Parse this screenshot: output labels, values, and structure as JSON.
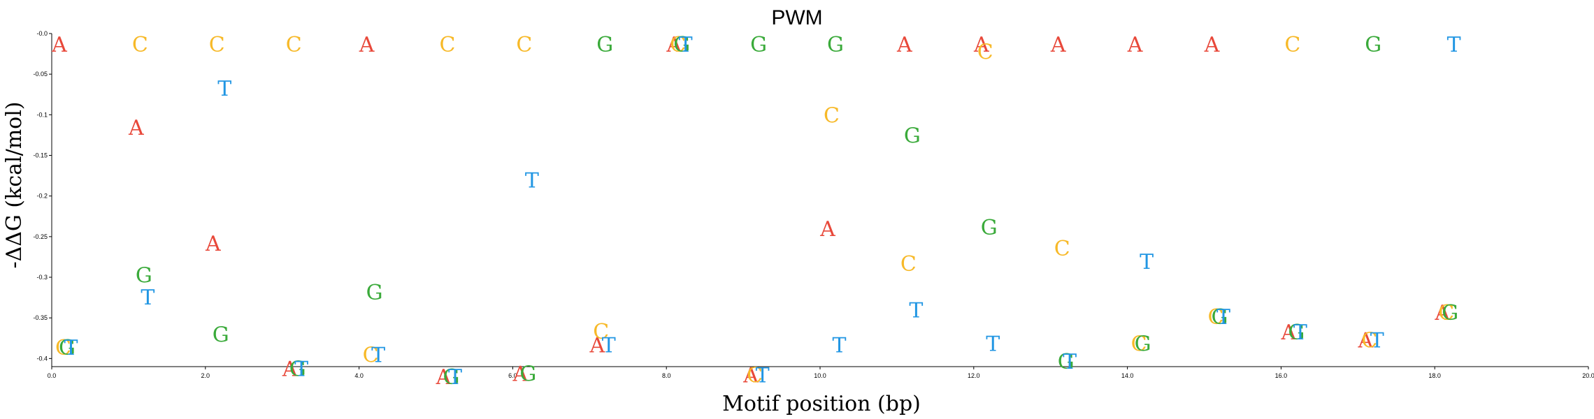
{
  "chart_data": {
    "type": "scatter",
    "title": "PWM",
    "xlabel": "Motif position (bp)",
    "ylabel": "-ΔΔG (kcal/mol)",
    "xlim": [
      0,
      20
    ],
    "ylim": [
      -0.41,
      0.0
    ],
    "x_ticks": [
      "0.0",
      "2.0",
      "4.0",
      "6.0",
      "8.0",
      "10.0",
      "12.0",
      "14.0",
      "16.0",
      "18.0",
      "20.0"
    ],
    "y_ticks": [
      "-0.0",
      "-0.05",
      "-0.1",
      "-0.15",
      "-0.2",
      "-0.25",
      "-0.3",
      "-0.35",
      "-0.4"
    ],
    "x_tick_values": [
      0,
      2,
      4,
      6,
      8,
      10,
      12,
      14,
      16,
      18,
      20
    ],
    "y_tick_values": [
      0,
      -0.05,
      -0.1,
      -0.15,
      -0.2,
      -0.25,
      -0.3,
      -0.35,
      -0.4
    ],
    "colors": {
      "A": "#e8483a",
      "C": "#f7b928",
      "G": "#3aaa3a",
      "T": "#2196e3"
    },
    "offsets": {
      "A": 0.1,
      "C": 0.15,
      "G": 0.2,
      "T": 0.25
    },
    "series": [
      {
        "name": "A",
        "points": [
          {
            "x": 0,
            "y": -0.013
          },
          {
            "x": 1,
            "y": -0.115
          },
          {
            "x": 2,
            "y": -0.258
          },
          {
            "x": 3,
            "y": -0.412
          },
          {
            "x": 4,
            "y": -0.013
          },
          {
            "x": 5,
            "y": -0.422
          },
          {
            "x": 6,
            "y": -0.418
          },
          {
            "x": 7,
            "y": -0.383
          },
          {
            "x": 8,
            "y": -0.013
          },
          {
            "x": 9,
            "y": -0.42
          },
          {
            "x": 10,
            "y": -0.24
          },
          {
            "x": 11,
            "y": -0.013
          },
          {
            "x": 12,
            "y": -0.013
          },
          {
            "x": 13,
            "y": -0.013
          },
          {
            "x": 14,
            "y": -0.013
          },
          {
            "x": 15,
            "y": -0.013
          },
          {
            "x": 16,
            "y": -0.367
          },
          {
            "x": 17,
            "y": -0.377
          },
          {
            "x": 18,
            "y": -0.343
          }
        ]
      },
      {
        "name": "C",
        "points": [
          {
            "x": 0,
            "y": -0.386
          },
          {
            "x": 1,
            "y": -0.013
          },
          {
            "x": 2,
            "y": -0.013
          },
          {
            "x": 3,
            "y": -0.013
          },
          {
            "x": 4,
            "y": -0.395
          },
          {
            "x": 5,
            "y": -0.013
          },
          {
            "x": 6,
            "y": -0.013
          },
          {
            "x": 7,
            "y": -0.366
          },
          {
            "x": 8,
            "y": -0.013
          },
          {
            "x": 9,
            "y": -0.42
          },
          {
            "x": 10,
            "y": -0.1
          },
          {
            "x": 11,
            "y": -0.283
          },
          {
            "x": 12,
            "y": -0.022
          },
          {
            "x": 13,
            "y": -0.264
          },
          {
            "x": 14,
            "y": -0.381
          },
          {
            "x": 15,
            "y": -0.348
          },
          {
            "x": 16,
            "y": -0.013
          },
          {
            "x": 17,
            "y": -0.377
          },
          {
            "x": 18,
            "y": -0.343
          }
        ]
      },
      {
        "name": "G",
        "points": [
          {
            "x": 0,
            "y": -0.386
          },
          {
            "x": 1,
            "y": -0.297
          },
          {
            "x": 2,
            "y": -0.37
          },
          {
            "x": 3,
            "y": -0.412
          },
          {
            "x": 4,
            "y": -0.318
          },
          {
            "x": 5,
            "y": -0.422
          },
          {
            "x": 6,
            "y": -0.418
          },
          {
            "x": 7,
            "y": -0.013
          },
          {
            "x": 8,
            "y": -0.013
          },
          {
            "x": 9,
            "y": -0.013
          },
          {
            "x": 10,
            "y": -0.013
          },
          {
            "x": 11,
            "y": -0.125
          },
          {
            "x": 12,
            "y": -0.238
          },
          {
            "x": 13,
            "y": -0.403
          },
          {
            "x": 14,
            "y": -0.381
          },
          {
            "x": 15,
            "y": -0.348
          },
          {
            "x": 16,
            "y": -0.367
          },
          {
            "x": 17,
            "y": -0.013
          },
          {
            "x": 18,
            "y": -0.343
          }
        ]
      },
      {
        "name": "T",
        "points": [
          {
            "x": 0,
            "y": -0.386
          },
          {
            "x": 1,
            "y": -0.324
          },
          {
            "x": 2,
            "y": -0.067
          },
          {
            "x": 3,
            "y": -0.412
          },
          {
            "x": 4,
            "y": -0.395
          },
          {
            "x": 5,
            "y": -0.422
          },
          {
            "x": 6,
            "y": -0.18
          },
          {
            "x": 7,
            "y": -0.383
          },
          {
            "x": 8,
            "y": -0.013
          },
          {
            "x": 9,
            "y": -0.42
          },
          {
            "x": 10,
            "y": -0.383
          },
          {
            "x": 11,
            "y": -0.34
          },
          {
            "x": 12,
            "y": -0.381
          },
          {
            "x": 13,
            "y": -0.403
          },
          {
            "x": 14,
            "y": -0.28
          },
          {
            "x": 15,
            "y": -0.348
          },
          {
            "x": 16,
            "y": -0.367
          },
          {
            "x": 17,
            "y": -0.377
          },
          {
            "x": 18,
            "y": -0.013
          }
        ]
      }
    ]
  }
}
